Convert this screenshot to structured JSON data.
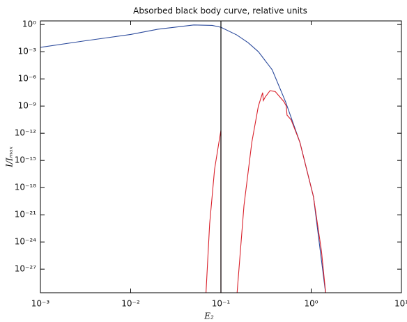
{
  "chart_data": {
    "type": "line",
    "title": "Absorbed black body curve, relative units",
    "xlabel": "E₂",
    "ylabel": "I/Iₘₐₓ",
    "xscale": "log",
    "yscale": "log",
    "xlim": [
      0.001,
      10
    ],
    "ylim": [
      2.5e-30,
      2.5
    ],
    "xticks": [
      {
        "value": 0.001,
        "label": "10⁻³"
      },
      {
        "value": 0.01,
        "label": "10⁻²"
      },
      {
        "value": 0.1,
        "label": "10⁻¹"
      },
      {
        "value": 1,
        "label": "10⁰"
      },
      {
        "value": 10,
        "label": "10¹"
      }
    ],
    "yticks": [
      {
        "value": 1,
        "label": "10⁰"
      },
      {
        "value": 0.001,
        "label": "10⁻³"
      },
      {
        "value": 1e-06,
        "label": "10⁻⁶"
      },
      {
        "value": 1e-09,
        "label": "10⁻⁹"
      },
      {
        "value": 1e-12,
        "label": "10⁻¹²"
      },
      {
        "value": 1e-15,
        "label": "10⁻¹⁵"
      },
      {
        "value": 1e-18,
        "label": "10⁻¹⁸"
      },
      {
        "value": 1e-21,
        "label": "10⁻²¹"
      },
      {
        "value": 1e-24,
        "label": "10⁻²⁴"
      },
      {
        "value": 1e-27,
        "label": "10⁻²⁷"
      }
    ],
    "vline": {
      "x": 0.1,
      "color": "#000000"
    },
    "series": [
      {
        "color": "#2b4a9c",
        "x": [
          0.001,
          0.003,
          0.01,
          0.02,
          0.05,
          0.08,
          0.1,
          0.15,
          0.2,
          0.26,
          0.37,
          0.52,
          0.75,
          1.06,
          1.46
        ],
        "values": [
          0.003,
          0.015,
          0.08,
          0.3,
          0.9,
          0.8,
          0.5,
          0.07,
          0.01,
          0.001,
          1e-05,
          3e-09,
          1e-13,
          1e-19,
          1e-30
        ]
      },
      {
        "color": "#d9202a",
        "x": [
          0.068,
          0.075,
          0.085,
          0.095,
          0.1,
          0.1,
          null,
          0.15,
          0.18,
          0.22,
          0.26,
          0.29,
          0.295,
          0.31,
          0.35,
          0.4,
          0.5,
          0.53,
          0.54,
          0.6,
          0.75,
          1.06,
          1.3,
          1.46
        ],
        "values": [
          1e-30,
          1e-22,
          1e-16,
          1e-13,
          2e-12,
          1e-30,
          null,
          1e-30,
          1e-20,
          1e-13,
          1e-09,
          3e-08,
          4e-09,
          1e-08,
          5e-08,
          4e-08,
          3e-09,
          1e-09,
          1e-10,
          3e-11,
          1e-13,
          1e-19,
          1e-25,
          1e-30
        ]
      }
    ]
  }
}
